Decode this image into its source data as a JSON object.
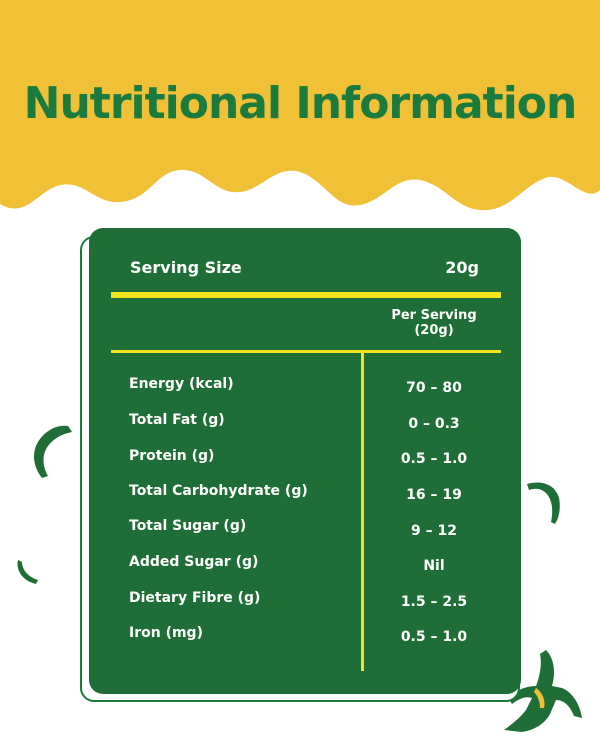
{
  "header": {
    "title": "Nutritional Information"
  },
  "serving": {
    "label": "Serving Size",
    "value": "20g"
  },
  "table": {
    "column_header_line1": "Per Serving",
    "column_header_line2": "(20g)",
    "rows": [
      {
        "label": "Energy (kcal)",
        "value": "70 – 80"
      },
      {
        "label": "Total Fat (g)",
        "value": "0 – 0.3"
      },
      {
        "label": "Protein (g)",
        "value": "0.5 – 1.0"
      },
      {
        "label": "Total Carbohydrate (g)",
        "value": "16 – 19"
      },
      {
        "label": "Total Sugar (g)",
        "value": "9 – 12"
      },
      {
        "label": "Added Sugar (g)",
        "value": "Nil"
      },
      {
        "label": "Dietary Fibre (g)",
        "value": "1.5 – 2.5"
      },
      {
        "label": "Iron (mg)",
        "value": "0.5 – 1.0"
      }
    ]
  },
  "colors": {
    "banner_yellow": "#f0c136",
    "panel_green": "#1f6e37",
    "title_green": "#1b7a3e",
    "rule_yellow": "#f2e51d"
  },
  "decorations": [
    "banana-slice-icon",
    "banana-slice-icon",
    "banana-chip-icon",
    "peeled-banana-icon"
  ]
}
